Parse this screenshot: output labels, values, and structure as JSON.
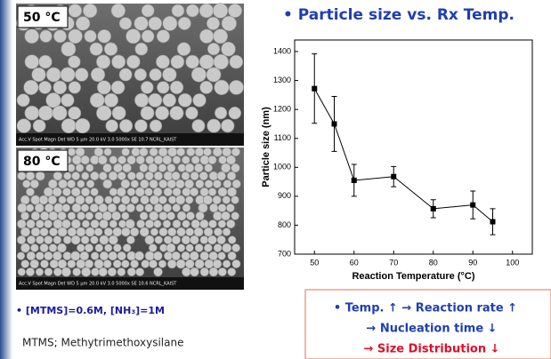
{
  "chart_data": {
    "type": "errorbar-line",
    "title": "• Particle size vs. Rx Temp.",
    "x_label": "Reaction Temperature (°C)",
    "y_label": "Particle size (nm)",
    "x": [
      50,
      55,
      60,
      70,
      80,
      90,
      95
    ],
    "values": [
      1272,
      1150,
      955,
      968,
      857,
      870,
      812
    ],
    "errors": [
      120,
      95,
      55,
      35,
      31,
      48,
      45
    ],
    "color": "#000000",
    "xlim": [
      45,
      105
    ],
    "xticks": [
      50,
      60,
      70,
      80,
      90,
      100
    ],
    "ylim": [
      700,
      1440
    ],
    "yticks": [
      700,
      800,
      900,
      1000,
      1100,
      1200,
      1300,
      1400
    ]
  },
  "images": [
    {
      "label": "50 °C",
      "caption": "Acc.V  Spot Magn   Det  WD        5 μm   20.0 kV 3.0  5000x   SE  10.7  NCRL_KAIST"
    },
    {
      "label": "80 °C",
      "caption": "Acc.V  Spot Magn   Det  WD        5 μm   20.0 kV 3.0  5000x   SE  10.6  NCRL_KAIST"
    }
  ],
  "conditions": "• [MTMS]=0.6M, [NH₃]=1M",
  "definition": "MTMS; Methytrimethoxysilane",
  "conclusion": [
    "• Temp. ↑ → Reaction rate ↑",
    "→ Nucleation time ↓",
    "→ Size Distribution ↓"
  ]
}
